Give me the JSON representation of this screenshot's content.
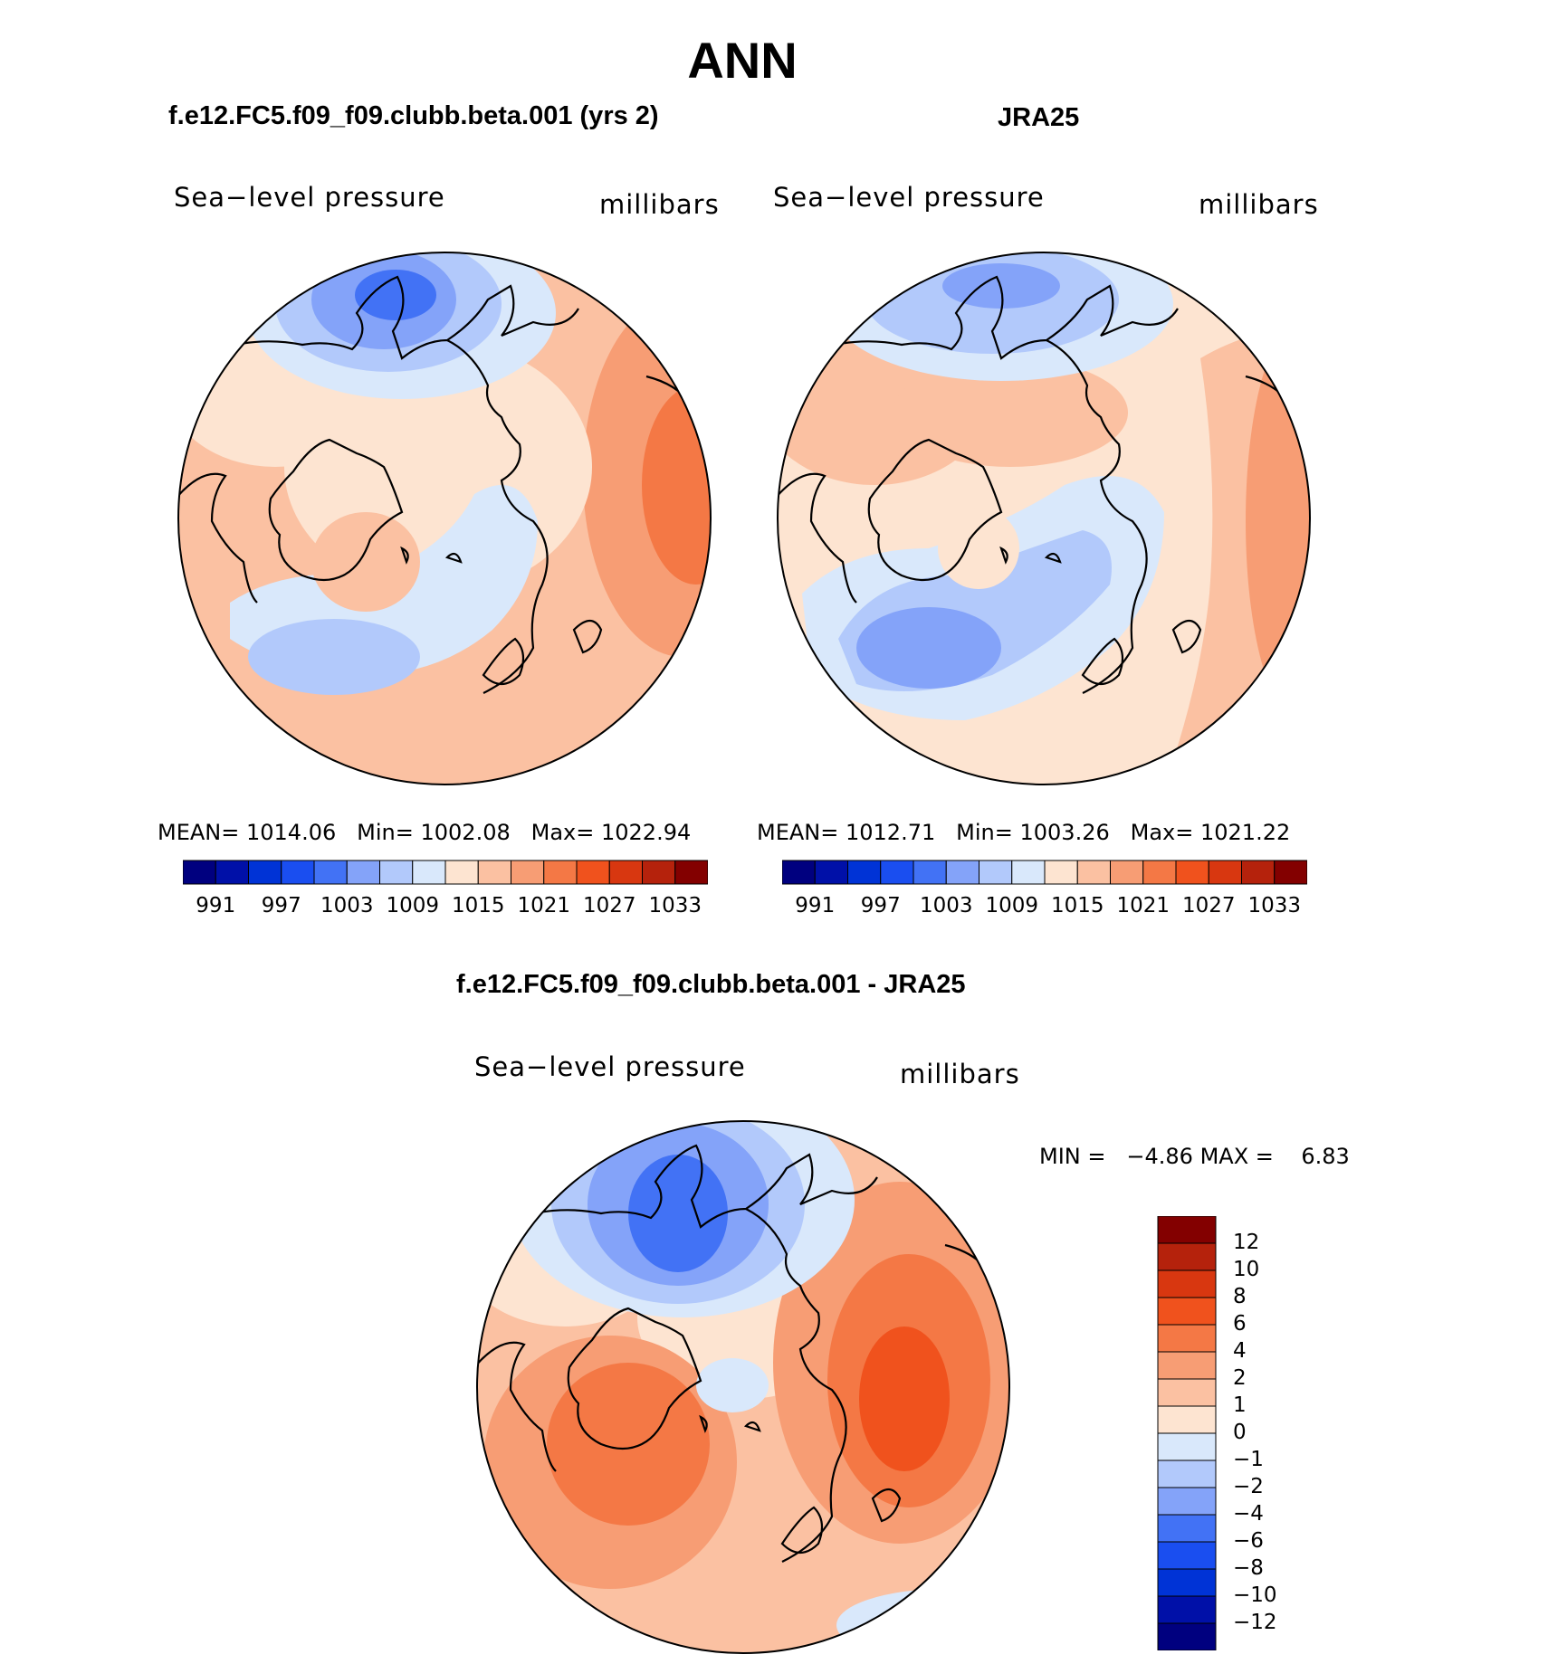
{
  "figure": {
    "title": "ANN",
    "panel_top_left": {
      "subtitle": "f.e12.FC5.f09_f09.clubb.beta.001 (yrs 2)",
      "variable_label": "Sea−level pressure",
      "units_label": "millibars",
      "stats": {
        "mean_label": "MEAN=",
        "mean": "1014.06",
        "min_label": "Min=",
        "min": "1002.08",
        "max_label": "Max=",
        "max": "1022.94"
      },
      "colorbar_ticks": [
        "991",
        "997",
        "1003",
        "1009",
        "1015",
        "1021",
        "1027",
        "1033"
      ]
    },
    "panel_top_right": {
      "subtitle": "JRA25",
      "variable_label": "Sea−level pressure",
      "units_label": "millibars",
      "stats": {
        "mean_label": "MEAN=",
        "mean": "1012.71",
        "min_label": "Min=",
        "min": "1003.26",
        "max_label": "Max=",
        "max": "1021.22"
      },
      "colorbar_ticks": [
        "991",
        "997",
        "1003",
        "1009",
        "1015",
        "1021",
        "1027",
        "1033"
      ]
    },
    "panel_bottom": {
      "subtitle": "f.e12.FC5.f09_f09.clubb.beta.001 - JRA25",
      "variable_label": "Sea−level pressure",
      "units_label": "millibars",
      "stats": {
        "min_label": "MIN =",
        "min": "−4.86",
        "max_label": "MAX =",
        "max": "6.83"
      },
      "colorbar_ticks": [
        "12",
        "10",
        "8",
        "6",
        "4",
        "2",
        "1",
        "0",
        "−1",
        "−2",
        "−4",
        "−6",
        "−8",
        "−10",
        "−12"
      ]
    }
  },
  "colors": {
    "abs_scale": [
      "#00007f",
      "#0010a8",
      "#0033d6",
      "#1a4ef0",
      "#4272f5",
      "#84a3f9",
      "#b2c9fb",
      "#d9e8fb",
      "#fde4d1",
      "#fbc1a2",
      "#f79d74",
      "#f47845",
      "#f0521d",
      "#d83710",
      "#b5220c",
      "#830000"
    ],
    "diff_scale": [
      "#830000",
      "#b5220c",
      "#d83710",
      "#f0521d",
      "#f47845",
      "#f79d74",
      "#fbc1a2",
      "#fde4d1",
      "#d9e8fb",
      "#b2c9fb",
      "#84a3f9",
      "#4272f5",
      "#1a4ef0",
      "#0033d6",
      "#0010a8",
      "#00007f"
    ],
    "coastline": "#000000"
  }
}
